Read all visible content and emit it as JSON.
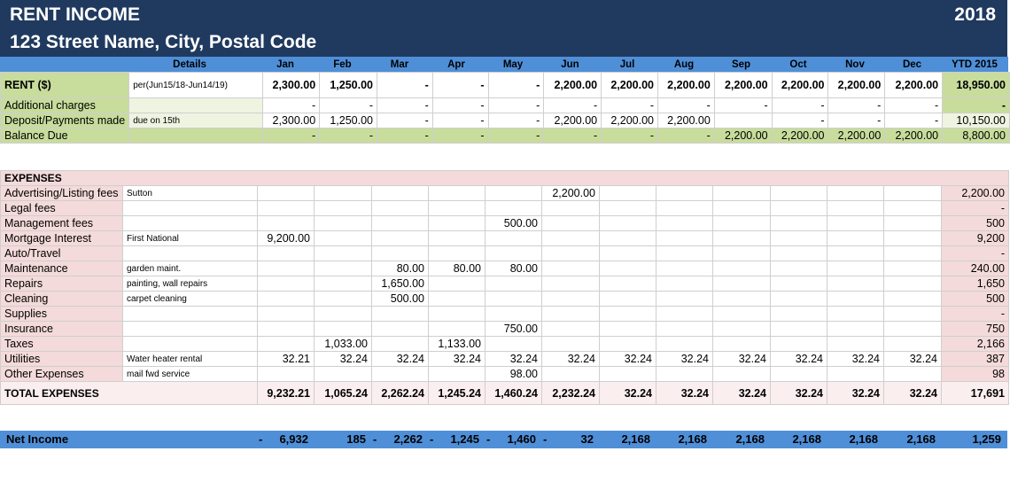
{
  "title": "RENT INCOME",
  "year": "2018",
  "address": "123 Street Name, City, Postal Code",
  "columns": {
    "details": "Details",
    "months": [
      "Jan",
      "Feb",
      "Mar",
      "Apr",
      "May",
      "Jun",
      "Jul",
      "Aug",
      "Sep",
      "Oct",
      "Nov",
      "Dec"
    ],
    "ytd": "YTD 2015"
  },
  "rent": {
    "label": "RENT ($)",
    "details": "per(Jun15/18-Jun14/19)",
    "months": [
      "2,300.00",
      "1,250.00",
      "-",
      "-",
      "-",
      "2,200.00",
      "2,200.00",
      "2,200.00",
      "2,200.00",
      "2,200.00",
      "2,200.00",
      "2,200.00"
    ],
    "ytd": "18,950.00"
  },
  "additional_charges": {
    "label": "Additional charges",
    "details": "",
    "months": [
      "-",
      "-",
      "-",
      "-",
      "-",
      "-",
      "-",
      "-",
      "-",
      "-",
      "-",
      "-"
    ],
    "ytd": "-"
  },
  "deposits": {
    "label": "Deposit/Payments made",
    "details": "due on 15th",
    "months": [
      "2,300.00",
      "1,250.00",
      "-",
      "-",
      "-",
      "2,200.00",
      "2,200.00",
      "2,200.00",
      "",
      "-",
      "-",
      "-"
    ],
    "ytd": "10,150.00"
  },
  "balance_due": {
    "label": "Balance Due",
    "details": "",
    "months": [
      "-",
      "-",
      "-",
      "-",
      "-",
      "-",
      "-",
      "-",
      "2,200.00",
      "2,200.00",
      "2,200.00",
      "2,200.00"
    ],
    "ytd": "8,800.00"
  },
  "expenses_heading": "EXPENSES",
  "expenses": [
    {
      "label": "Advertising/Listing fees",
      "details": "Sutton",
      "months": [
        "",
        "",
        "",
        "",
        "",
        "2,200.00",
        "",
        "",
        "",
        "",
        "",
        ""
      ],
      "ytd": "2,200.00"
    },
    {
      "label": "Legal fees",
      "details": "",
      "months": [
        "",
        "",
        "",
        "",
        "",
        "",
        "",
        "",
        "",
        "",
        "",
        ""
      ],
      "ytd": "-"
    },
    {
      "label": "Management fees",
      "details": "",
      "months": [
        "",
        "",
        "",
        "",
        "500.00",
        "",
        "",
        "",
        "",
        "",
        "",
        ""
      ],
      "ytd": "500"
    },
    {
      "label": "Mortgage Interest",
      "details": "First National",
      "months": [
        "9,200.00",
        "",
        "",
        "",
        "",
        "",
        "",
        "",
        "",
        "",
        "",
        ""
      ],
      "ytd": "9,200"
    },
    {
      "label": "Auto/Travel",
      "details": "",
      "months": [
        "",
        "",
        "",
        "",
        "",
        "",
        "",
        "",
        "",
        "",
        "",
        ""
      ],
      "ytd": "-"
    },
    {
      "label": "Maintenance",
      "details": "garden maint.",
      "months": [
        "",
        "",
        "80.00",
        "80.00",
        "80.00",
        "",
        "",
        "",
        "",
        "",
        "",
        ""
      ],
      "ytd": "240.00"
    },
    {
      "label": "Repairs",
      "details": "painting, wall repairs",
      "months": [
        "",
        "",
        "1,650.00",
        "",
        "",
        "",
        "",
        "",
        "",
        "",
        "",
        ""
      ],
      "ytd": "1,650"
    },
    {
      "label": "Cleaning",
      "details": "carpet cleaning",
      "months": [
        "",
        "",
        "500.00",
        "",
        "",
        "",
        "",
        "",
        "",
        "",
        "",
        ""
      ],
      "ytd": "500"
    },
    {
      "label": "Supplies",
      "details": "",
      "months": [
        "",
        "",
        "",
        "",
        "",
        "",
        "",
        "",
        "",
        "",
        "",
        ""
      ],
      "ytd": "-"
    },
    {
      "label": "Insurance",
      "details": "",
      "months": [
        "",
        "",
        "",
        "",
        "750.00",
        "",
        "",
        "",
        "",
        "",
        "",
        ""
      ],
      "ytd": "750"
    },
    {
      "label": "Taxes",
      "details": "",
      "months": [
        "",
        "1,033.00",
        "",
        "1,133.00",
        "",
        "",
        "",
        "",
        "",
        "",
        "",
        ""
      ],
      "ytd": "2,166"
    },
    {
      "label": "Utilities",
      "details": "Water heater rental",
      "months": [
        "32.21",
        "32.24",
        "32.24",
        "32.24",
        "32.24",
        "32.24",
        "32.24",
        "32.24",
        "32.24",
        "32.24",
        "32.24",
        "32.24"
      ],
      "ytd": "387"
    },
    {
      "label": "Other Expenses",
      "details": "mail fwd service",
      "months": [
        "",
        "",
        "",
        "",
        "98.00",
        "",
        "",
        "",
        "",
        "",
        "",
        ""
      ],
      "ytd": "98"
    }
  ],
  "total_expenses": {
    "label": "TOTAL EXPENSES",
    "months": [
      "9,232.21",
      "1,065.24",
      "2,262.24",
      "1,245.24",
      "1,460.24",
      "2,232.24",
      "32.24",
      "32.24",
      "32.24",
      "32.24",
      "32.24",
      "32.24"
    ],
    "ytd": "17,691"
  },
  "net_income": {
    "label": "Net Income",
    "months": [
      "6,932",
      "185",
      "2,262",
      "1,245",
      "1,460",
      "32",
      "2,168",
      "2,168",
      "2,168",
      "2,168",
      "2,168",
      "2,168"
    ],
    "negative_marks": [
      "-",
      "",
      "-",
      "-",
      "-",
      "-",
      "",
      "",
      "",
      "",
      "",
      ""
    ],
    "ytd": "1,259"
  },
  "colors": {
    "title_band": "#203a5f",
    "header_band": "#4f8fd8",
    "rent_green": "#c8dc9c",
    "expense_pink": "#f4dada"
  }
}
